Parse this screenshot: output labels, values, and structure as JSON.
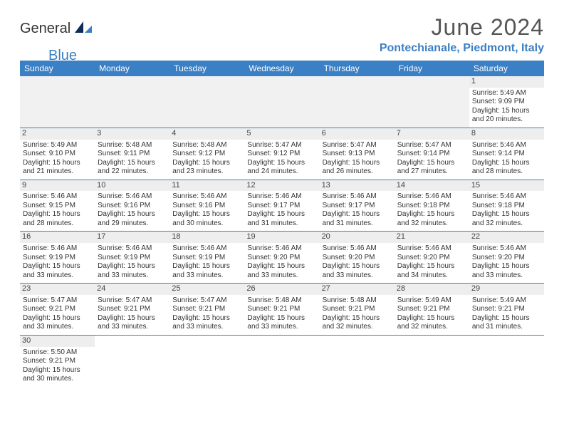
{
  "logo": {
    "part1": "General",
    "part2": "Blue"
  },
  "title": "June 2024",
  "location": "Pontechianale, Piedmont, Italy",
  "colors": {
    "accent": "#3b7fc4",
    "header_text": "#ffffff",
    "day_band": "#eeeeee",
    "text": "#333333",
    "title_text": "#555555"
  },
  "weekdays": [
    "Sunday",
    "Monday",
    "Tuesday",
    "Wednesday",
    "Thursday",
    "Friday",
    "Saturday"
  ],
  "weeks": [
    [
      null,
      null,
      null,
      null,
      null,
      null,
      {
        "n": "1",
        "sr": "Sunrise: 5:49 AM",
        "ss": "Sunset: 9:09 PM",
        "d1": "Daylight: 15 hours",
        "d2": "and 20 minutes."
      }
    ],
    [
      {
        "n": "2",
        "sr": "Sunrise: 5:49 AM",
        "ss": "Sunset: 9:10 PM",
        "d1": "Daylight: 15 hours",
        "d2": "and 21 minutes."
      },
      {
        "n": "3",
        "sr": "Sunrise: 5:48 AM",
        "ss": "Sunset: 9:11 PM",
        "d1": "Daylight: 15 hours",
        "d2": "and 22 minutes."
      },
      {
        "n": "4",
        "sr": "Sunrise: 5:48 AM",
        "ss": "Sunset: 9:12 PM",
        "d1": "Daylight: 15 hours",
        "d2": "and 23 minutes."
      },
      {
        "n": "5",
        "sr": "Sunrise: 5:47 AM",
        "ss": "Sunset: 9:12 PM",
        "d1": "Daylight: 15 hours",
        "d2": "and 24 minutes."
      },
      {
        "n": "6",
        "sr": "Sunrise: 5:47 AM",
        "ss": "Sunset: 9:13 PM",
        "d1": "Daylight: 15 hours",
        "d2": "and 26 minutes."
      },
      {
        "n": "7",
        "sr": "Sunrise: 5:47 AM",
        "ss": "Sunset: 9:14 PM",
        "d1": "Daylight: 15 hours",
        "d2": "and 27 minutes."
      },
      {
        "n": "8",
        "sr": "Sunrise: 5:46 AM",
        "ss": "Sunset: 9:14 PM",
        "d1": "Daylight: 15 hours",
        "d2": "and 28 minutes."
      }
    ],
    [
      {
        "n": "9",
        "sr": "Sunrise: 5:46 AM",
        "ss": "Sunset: 9:15 PM",
        "d1": "Daylight: 15 hours",
        "d2": "and 28 minutes."
      },
      {
        "n": "10",
        "sr": "Sunrise: 5:46 AM",
        "ss": "Sunset: 9:16 PM",
        "d1": "Daylight: 15 hours",
        "d2": "and 29 minutes."
      },
      {
        "n": "11",
        "sr": "Sunrise: 5:46 AM",
        "ss": "Sunset: 9:16 PM",
        "d1": "Daylight: 15 hours",
        "d2": "and 30 minutes."
      },
      {
        "n": "12",
        "sr": "Sunrise: 5:46 AM",
        "ss": "Sunset: 9:17 PM",
        "d1": "Daylight: 15 hours",
        "d2": "and 31 minutes."
      },
      {
        "n": "13",
        "sr": "Sunrise: 5:46 AM",
        "ss": "Sunset: 9:17 PM",
        "d1": "Daylight: 15 hours",
        "d2": "and 31 minutes."
      },
      {
        "n": "14",
        "sr": "Sunrise: 5:46 AM",
        "ss": "Sunset: 9:18 PM",
        "d1": "Daylight: 15 hours",
        "d2": "and 32 minutes."
      },
      {
        "n": "15",
        "sr": "Sunrise: 5:46 AM",
        "ss": "Sunset: 9:18 PM",
        "d1": "Daylight: 15 hours",
        "d2": "and 32 minutes."
      }
    ],
    [
      {
        "n": "16",
        "sr": "Sunrise: 5:46 AM",
        "ss": "Sunset: 9:19 PM",
        "d1": "Daylight: 15 hours",
        "d2": "and 33 minutes."
      },
      {
        "n": "17",
        "sr": "Sunrise: 5:46 AM",
        "ss": "Sunset: 9:19 PM",
        "d1": "Daylight: 15 hours",
        "d2": "and 33 minutes."
      },
      {
        "n": "18",
        "sr": "Sunrise: 5:46 AM",
        "ss": "Sunset: 9:19 PM",
        "d1": "Daylight: 15 hours",
        "d2": "and 33 minutes."
      },
      {
        "n": "19",
        "sr": "Sunrise: 5:46 AM",
        "ss": "Sunset: 9:20 PM",
        "d1": "Daylight: 15 hours",
        "d2": "and 33 minutes."
      },
      {
        "n": "20",
        "sr": "Sunrise: 5:46 AM",
        "ss": "Sunset: 9:20 PM",
        "d1": "Daylight: 15 hours",
        "d2": "and 33 minutes."
      },
      {
        "n": "21",
        "sr": "Sunrise: 5:46 AM",
        "ss": "Sunset: 9:20 PM",
        "d1": "Daylight: 15 hours",
        "d2": "and 34 minutes."
      },
      {
        "n": "22",
        "sr": "Sunrise: 5:46 AM",
        "ss": "Sunset: 9:20 PM",
        "d1": "Daylight: 15 hours",
        "d2": "and 33 minutes."
      }
    ],
    [
      {
        "n": "23",
        "sr": "Sunrise: 5:47 AM",
        "ss": "Sunset: 9:21 PM",
        "d1": "Daylight: 15 hours",
        "d2": "and 33 minutes."
      },
      {
        "n": "24",
        "sr": "Sunrise: 5:47 AM",
        "ss": "Sunset: 9:21 PM",
        "d1": "Daylight: 15 hours",
        "d2": "and 33 minutes."
      },
      {
        "n": "25",
        "sr": "Sunrise: 5:47 AM",
        "ss": "Sunset: 9:21 PM",
        "d1": "Daylight: 15 hours",
        "d2": "and 33 minutes."
      },
      {
        "n": "26",
        "sr": "Sunrise: 5:48 AM",
        "ss": "Sunset: 9:21 PM",
        "d1": "Daylight: 15 hours",
        "d2": "and 33 minutes."
      },
      {
        "n": "27",
        "sr": "Sunrise: 5:48 AM",
        "ss": "Sunset: 9:21 PM",
        "d1": "Daylight: 15 hours",
        "d2": "and 32 minutes."
      },
      {
        "n": "28",
        "sr": "Sunrise: 5:49 AM",
        "ss": "Sunset: 9:21 PM",
        "d1": "Daylight: 15 hours",
        "d2": "and 32 minutes."
      },
      {
        "n": "29",
        "sr": "Sunrise: 5:49 AM",
        "ss": "Sunset: 9:21 PM",
        "d1": "Daylight: 15 hours",
        "d2": "and 31 minutes."
      }
    ],
    [
      {
        "n": "30",
        "sr": "Sunrise: 5:50 AM",
        "ss": "Sunset: 9:21 PM",
        "d1": "Daylight: 15 hours",
        "d2": "and 30 minutes."
      },
      null,
      null,
      null,
      null,
      null,
      null
    ]
  ]
}
